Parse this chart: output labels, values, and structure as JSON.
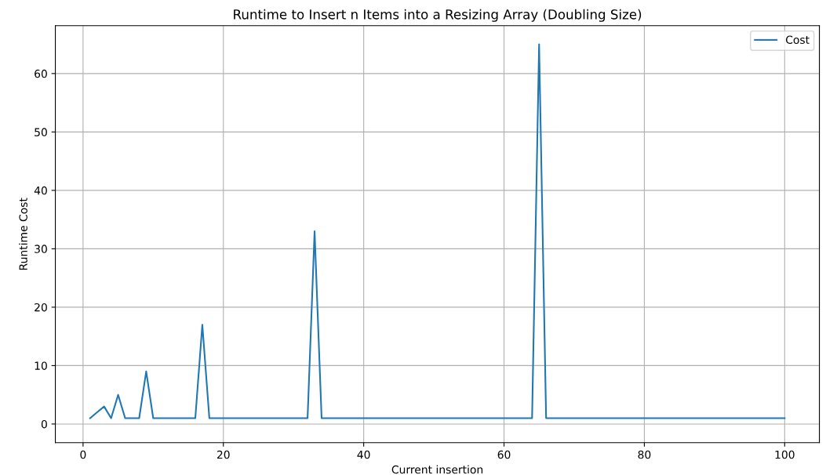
{
  "chart_data": {
    "type": "line",
    "title": "Runtime to Insert n Items into a Resizing Array (Doubling Size)",
    "xlabel": "Current insertion",
    "ylabel": "Runtime Cost",
    "x": [
      1,
      2,
      3,
      4,
      5,
      6,
      7,
      8,
      9,
      10,
      11,
      12,
      13,
      14,
      15,
      16,
      17,
      18,
      19,
      20,
      21,
      22,
      23,
      24,
      25,
      26,
      27,
      28,
      29,
      30,
      31,
      32,
      33,
      34,
      35,
      36,
      37,
      38,
      39,
      40,
      41,
      42,
      43,
      44,
      45,
      46,
      47,
      48,
      49,
      50,
      51,
      52,
      53,
      54,
      55,
      56,
      57,
      58,
      59,
      60,
      61,
      62,
      63,
      64,
      65,
      66,
      67,
      68,
      69,
      70,
      71,
      72,
      73,
      74,
      75,
      76,
      77,
      78,
      79,
      80,
      81,
      82,
      83,
      84,
      85,
      86,
      87,
      88,
      89,
      90,
      91,
      92,
      93,
      94,
      95,
      96,
      97,
      98,
      99,
      100
    ],
    "series": [
      {
        "name": "Cost",
        "color": "#1f77b4",
        "values": [
          1,
          2,
          3,
          1,
          5,
          1,
          1,
          1,
          9,
          1,
          1,
          1,
          1,
          1,
          1,
          1,
          17,
          1,
          1,
          1,
          1,
          1,
          1,
          1,
          1,
          1,
          1,
          1,
          1,
          1,
          1,
          1,
          33,
          1,
          1,
          1,
          1,
          1,
          1,
          1,
          1,
          1,
          1,
          1,
          1,
          1,
          1,
          1,
          1,
          1,
          1,
          1,
          1,
          1,
          1,
          1,
          1,
          1,
          1,
          1,
          1,
          1,
          1,
          1,
          65,
          1,
          1,
          1,
          1,
          1,
          1,
          1,
          1,
          1,
          1,
          1,
          1,
          1,
          1,
          1,
          1,
          1,
          1,
          1,
          1,
          1,
          1,
          1,
          1,
          1,
          1,
          1,
          1,
          1,
          1,
          1,
          1,
          1,
          1,
          1
        ]
      }
    ],
    "xlim": [
      -3.95,
      104.95
    ],
    "ylim": [
      -3.2,
      68.2
    ],
    "xticks": [
      0,
      20,
      40,
      60,
      80,
      100
    ],
    "yticks": [
      0,
      10,
      20,
      30,
      40,
      50,
      60
    ],
    "grid": true,
    "legend": "top right",
    "marker": "none",
    "line_style": "solid"
  }
}
